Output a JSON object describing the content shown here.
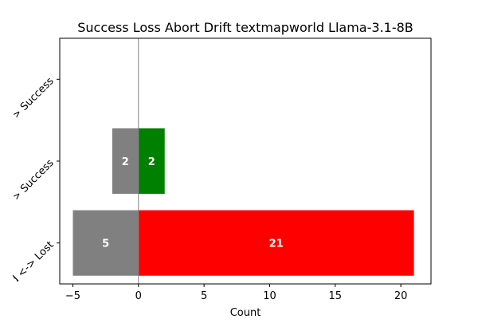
{
  "chart_data": {
    "type": "bar",
    "orientation": "horizontal",
    "title": "Success Loss Abort Drift  textmapworld Llama-3.1-8B",
    "xlabel": "Count",
    "ylabel": "",
    "xlim": [
      -6,
      22.3
    ],
    "xticks": [
      -5,
      0,
      5,
      10,
      15,
      20
    ],
    "categories": [
      "Aborted <-> Lost",
      "Aborted <-> Success",
      "Lost <-> Success"
    ],
    "bars": [
      {
        "category": "Aborted <-> Lost",
        "start": -5,
        "end": 0,
        "label": "5",
        "color": "#808080"
      },
      {
        "category": "Aborted <-> Lost",
        "start": 0,
        "end": 21,
        "label": "21",
        "color": "#ff0000"
      },
      {
        "category": "Aborted <-> Success",
        "start": -2,
        "end": 0,
        "label": "2",
        "color": "#808080"
      },
      {
        "category": "Aborted <-> Success",
        "start": 0,
        "end": 2,
        "label": "2",
        "color": "#008000"
      }
    ],
    "zero_line": true,
    "grid": false,
    "legend": "none"
  }
}
